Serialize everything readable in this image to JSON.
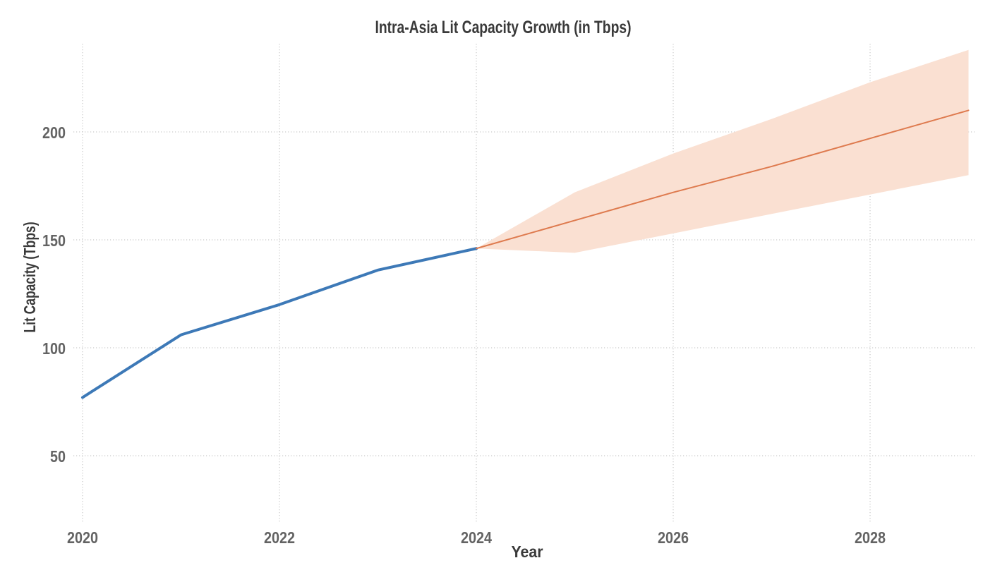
{
  "chart_data": {
    "type": "line",
    "title": "Intra-Asia Lit Capacity Growth (in Tbps)",
    "xlabel": "Year",
    "ylabel": "Lit Capacity (Tbps)",
    "x_ticks": [
      2020,
      2022,
      2024,
      2026,
      2028
    ],
    "y_ticks": [
      50,
      100,
      150,
      200
    ],
    "xlim": [
      2019.9,
      2029.1
    ],
    "ylim": [
      19,
      241
    ],
    "grid": "dotted-both-axes",
    "legend": "none",
    "colors": {
      "historical_line": "#3D79B7",
      "forecast_line": "#DE7A4E",
      "forecast_band_fill": "#FAE0D2",
      "grid": "#C9C9C9",
      "tick_text": "#636363",
      "label_text": "#3A3A3A"
    },
    "series": [
      {
        "name": "historical",
        "kind": "line",
        "stroke_width": 4,
        "x": [
          2020,
          2021,
          2022,
          2023,
          2024
        ],
        "y": [
          77,
          106,
          120,
          136,
          146
        ]
      },
      {
        "name": "forecast",
        "kind": "line",
        "stroke_width": 2,
        "x": [
          2024,
          2025,
          2026,
          2027,
          2028,
          2029
        ],
        "y": [
          146,
          159,
          172,
          184,
          197,
          210
        ]
      },
      {
        "name": "forecast-confidence-band",
        "kind": "band",
        "x": [
          2024,
          2025,
          2026,
          2027,
          2028,
          2029
        ],
        "upper": [
          146,
          172,
          190,
          206,
          223,
          238
        ],
        "lower": [
          146,
          144,
          153,
          162,
          171,
          180
        ]
      }
    ]
  }
}
